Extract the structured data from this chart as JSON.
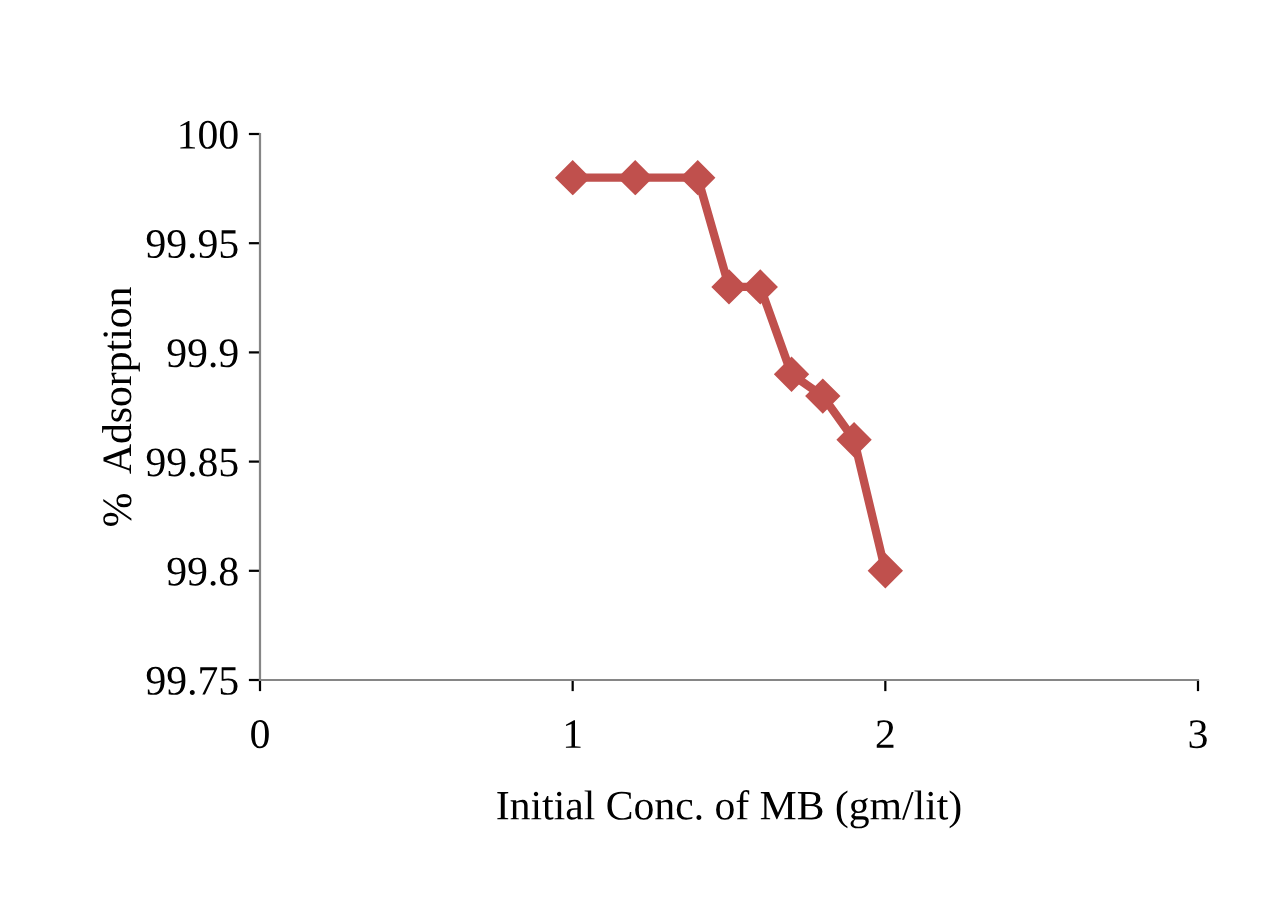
{
  "chart_data": {
    "type": "line",
    "xlabel": "Initial Conc. of MB (gm/lit)",
    "ylabel": "%  Adsorption",
    "x": [
      1,
      1.2,
      1.4,
      1.5,
      1.6,
      1.7,
      1.8,
      1.9,
      2.0
    ],
    "series": [
      {
        "color": "#c0504d",
        "values": [
          99.98,
          99.98,
          99.98,
          99.93,
          99.93,
          99.89,
          99.88,
          99.86,
          99.8
        ]
      }
    ],
    "xlim": [
      0,
      3
    ],
    "xticks": [
      0,
      1,
      2,
      3
    ],
    "ylim": [
      99.75,
      100
    ],
    "yticks": [
      {
        "value": 99.75,
        "label": "99.75"
      },
      {
        "value": 99.8,
        "label": "99.8"
      },
      {
        "value": 99.85,
        "label": "99.85"
      },
      {
        "value": 99.9,
        "label": "99.9"
      },
      {
        "value": 99.95,
        "label": "99.95"
      },
      {
        "value": 100,
        "label": "100"
      }
    ],
    "grid": false,
    "legend": false,
    "marker": "diamond",
    "line_style": "solid"
  }
}
